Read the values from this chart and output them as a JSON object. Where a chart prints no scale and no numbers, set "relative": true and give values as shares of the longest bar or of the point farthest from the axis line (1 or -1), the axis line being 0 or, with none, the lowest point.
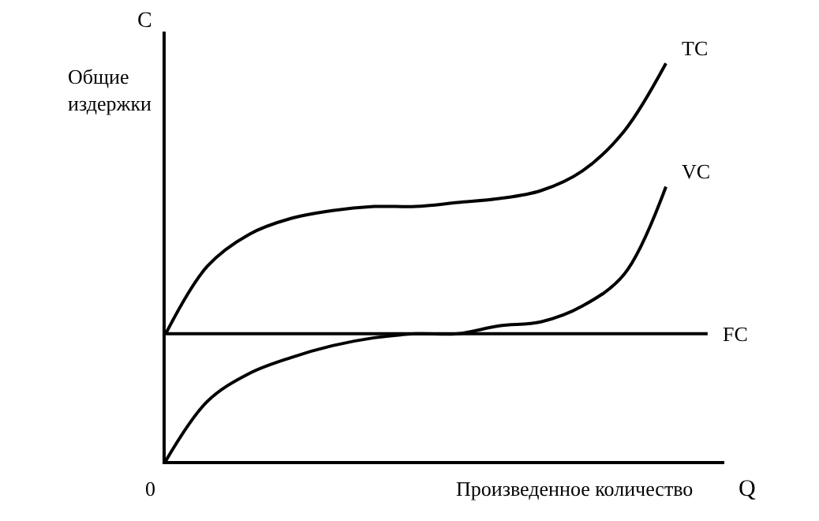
{
  "chart_data": {
    "type": "line",
    "relative": true,
    "xlabel": "Q",
    "ylabel": "C",
    "annotations": [
      "Общие\nиздержки",
      "Произведенное количество",
      "0"
    ],
    "categories": [
      null,
      null,
      null,
      null,
      null,
      null,
      null,
      null,
      null,
      null,
      null,
      null,
      null,
      null
    ],
    "series": [
      {
        "name": "TC",
        "color": "#000000",
        "values": [
          0.32,
          0.49,
          0.57,
          0.61,
          0.63,
          0.64,
          0.64,
          0.65,
          0.66,
          0.68,
          0.73,
          0.83,
          1.0,
          null
        ]
      },
      {
        "name": "VC",
        "color": "#000000",
        "values": [
          0,
          0.15,
          0.22,
          0.26,
          0.29,
          0.31,
          0.32,
          0.32,
          0.34,
          0.35,
          0.39,
          0.47,
          0.69,
          null
        ]
      },
      {
        "name": "FC",
        "color": "#000000",
        "values": [
          0.32,
          0.32,
          0.32,
          0.32,
          0.32,
          0.32,
          0.32,
          0.32,
          0.32,
          0.32,
          0.32,
          0.32,
          0.32,
          0.32
        ]
      }
    ],
    "legend": false,
    "marker": "none",
    "line_style": "solid"
  }
}
